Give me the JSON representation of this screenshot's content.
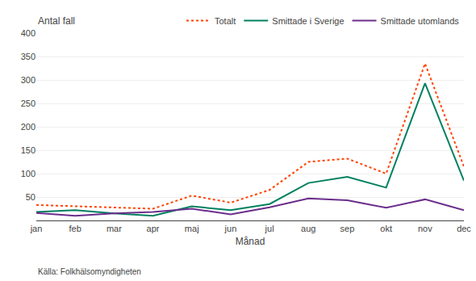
{
  "chart_data": {
    "type": "line",
    "xlabel": "Månad",
    "ylabel": "Antal fall",
    "annotations": [
      "Källa: Folkhälsomyndigheten"
    ],
    "categories": [
      "jan",
      "feb",
      "mar",
      "apr",
      "maj",
      "jun",
      "jul",
      "aug",
      "sep",
      "okt",
      "nov",
      "dec"
    ],
    "series": [
      {
        "name": "Totalt",
        "color": "#ff4400",
        "line_style": "dotted",
        "values": [
          33,
          30,
          28,
          25,
          53,
          38,
          65,
          125,
          132,
          100,
          335,
          115
        ]
      },
      {
        "name": "Smittade i Sverige",
        "color": "#008060",
        "line_style": "solid",
        "values": [
          18,
          22,
          15,
          10,
          30,
          22,
          35,
          80,
          93,
          70,
          293,
          85
        ]
      },
      {
        "name": "Smittade utomlands",
        "color": "#6b2d8b",
        "line_style": "solid",
        "values": [
          16,
          10,
          15,
          18,
          25,
          13,
          28,
          47,
          43,
          27,
          45,
          22
        ]
      }
    ],
    "ylim": [
      0,
      400
    ],
    "yticks": [
      50,
      100,
      150,
      200,
      250,
      300,
      350,
      400
    ],
    "grid": true,
    "legend": "top"
  }
}
